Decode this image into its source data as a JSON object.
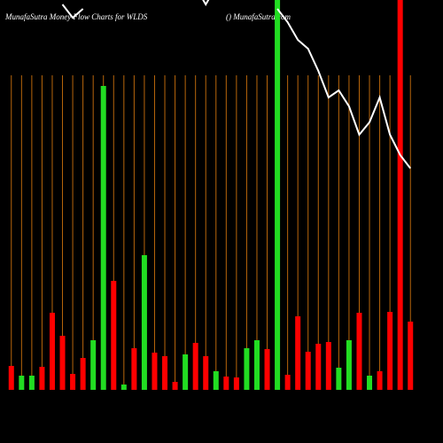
{
  "chart_data": {
    "type": "bar",
    "title": "MunafaSutra  Money Flow  Charts for WLDS",
    "subtitle": "() MunafaSutra.com",
    "categories": [
      null,
      null,
      null,
      null,
      null,
      null,
      null,
      null,
      null,
      null,
      null,
      null,
      null,
      null,
      null,
      null,
      null,
      null,
      null,
      null,
      null,
      null,
      null,
      null,
      null,
      null,
      null,
      null,
      null,
      null,
      null,
      null,
      null,
      null,
      null,
      null,
      null,
      null,
      null,
      null
    ],
    "values": [
      27,
      16,
      16,
      26,
      87,
      61,
      18,
      36,
      56,
      343,
      123,
      6,
      47,
      152,
      42,
      38,
      9,
      40,
      53,
      38,
      21,
      15,
      14,
      47,
      56,
      46,
      460,
      17,
      83,
      43,
      52,
      54,
      25,
      56,
      87,
      16,
      21,
      88,
      460,
      77
    ],
    "colors": [
      "#ff0000",
      "#22dd22",
      "#22dd22",
      "#ff0000",
      "#ff0000",
      "#ff0000",
      "#ff0000",
      "#ff0000",
      "#22dd22",
      "#22dd22",
      "#ff0000",
      "#22dd22",
      "#ff0000",
      "#22dd22",
      "#ff0000",
      "#ff0000",
      "#ff0000",
      "#22dd22",
      "#ff0000",
      "#ff0000",
      "#22dd22",
      "#ff0000",
      "#ff0000",
      "#22dd22",
      "#22dd22",
      "#ff0000",
      "#22dd22",
      "#ff0000",
      "#ff0000",
      "#ff0000",
      "#ff0000",
      "#ff0000",
      "#22dd22",
      "#22dd22",
      "#ff0000",
      "#22dd22",
      "#ff0000",
      "#ff0000",
      "#ff0000",
      "#ff0000"
    ],
    "ylim": [
      0,
      440
    ],
    "line": {
      "color": "#ffffff",
      "axis": "y2",
      "values": [
        null,
        null,
        null,
        null,
        null,
        435,
        420,
        430,
        null,
        null,
        null,
        null,
        null,
        null,
        null,
        null,
        null,
        null,
        455,
        435,
        455,
        null,
        null,
        null,
        null,
        null,
        430,
        415,
        395,
        385,
        360,
        330,
        338,
        320,
        288,
        302,
        330,
        288,
        265,
        250
      ]
    },
    "y2lim": [
      0,
      440
    ],
    "grid": true,
    "grid_color": "#b8660b"
  }
}
